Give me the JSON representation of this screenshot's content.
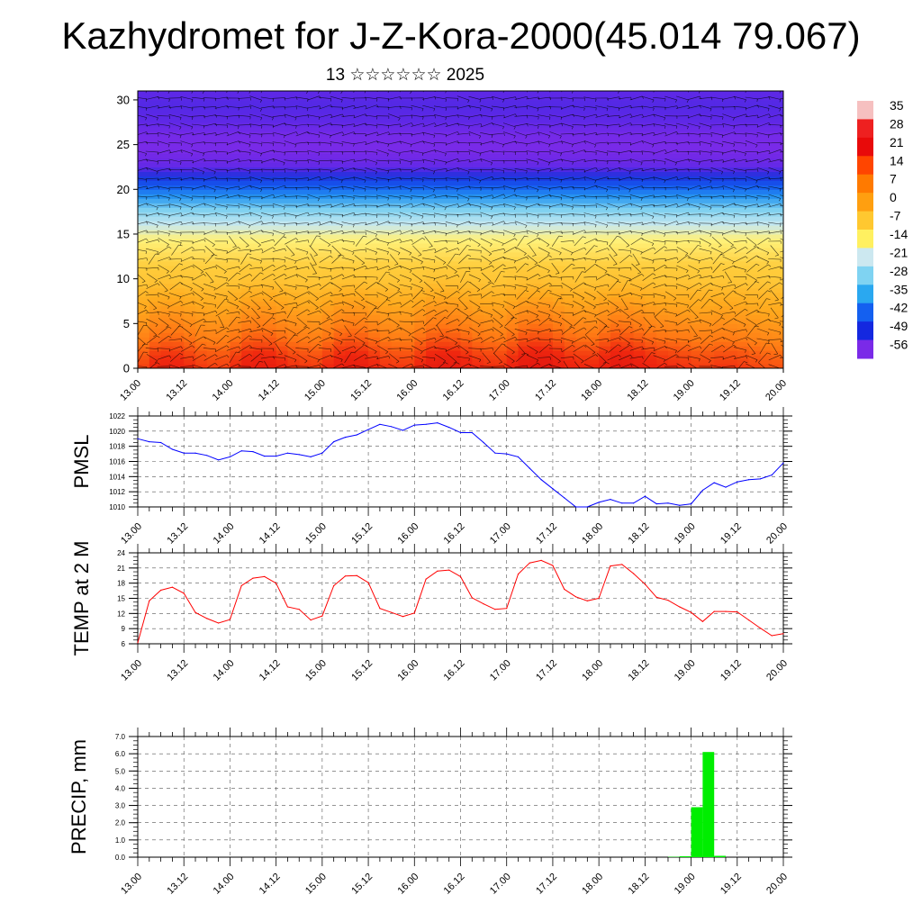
{
  "title": "Kazhydromet for J-Z-Kora-2000(45.014 79.067)",
  "subtitle": "13 ☆☆☆☆☆☆ 2025",
  "time_labels": [
    "13.00",
    "13.12",
    "14.00",
    "14.12",
    "15.00",
    "15.12",
    "16.00",
    "16.12",
    "17.00",
    "17.12",
    "18.00",
    "18.12",
    "19.00",
    "19.12",
    "20.00"
  ],
  "chart_data": [
    {
      "type": "heatmap",
      "title": "",
      "xlabel": "",
      "ylabel": "",
      "y_ticks": [
        0,
        5,
        10,
        15,
        20,
        25,
        30
      ],
      "ylim": [
        0,
        31
      ],
      "colorbar_labels": [
        "35",
        "28",
        "21",
        "14",
        "7",
        "0",
        "-7",
        "-14",
        "-21",
        "-28",
        "-35",
        "-42",
        "-49",
        "-56"
      ],
      "colorbar_colors": [
        "#f6c0c0",
        "#ee2020",
        "#e80a0a",
        "#ff4500",
        "#ff7a00",
        "#ff9f10",
        "#ffc830",
        "#fff060",
        "#cce8f0",
        "#7fd3f2",
        "#2aa8f0",
        "#1460f0",
        "#1428e0",
        "#7a2ae8"
      ],
      "levels": [
        0,
        1,
        2,
        3,
        4,
        5,
        6,
        7,
        8,
        9,
        10,
        11,
        12,
        13,
        14,
        15,
        16,
        17,
        18,
        19,
        20,
        21,
        22,
        23,
        24,
        25,
        26,
        27,
        28,
        29,
        30,
        31
      ],
      "temperature_profile": [
        22,
        19,
        15,
        12,
        9,
        6,
        2,
        0,
        -4,
        -8,
        -15,
        -22,
        -30,
        -40,
        -52,
        -56,
        -55,
        -50,
        -48,
        -50
      ]
    },
    {
      "type": "line",
      "ylabel": "PMSL",
      "ylim": [
        1010,
        1022
      ],
      "y_ticks": [
        1010,
        1012,
        1014,
        1016,
        1018,
        1020,
        1022
      ],
      "x": [
        "13.00",
        "13.03",
        "13.06",
        "13.09",
        "13.12",
        "13.15",
        "13.18",
        "13.21",
        "14.00",
        "14.03",
        "14.06",
        "14.09",
        "14.12",
        "14.15",
        "14.18",
        "14.21",
        "15.00",
        "15.03",
        "15.06",
        "15.09",
        "15.12",
        "15.15",
        "15.18",
        "15.21",
        "16.00",
        "16.03",
        "16.06",
        "16.09",
        "16.12",
        "16.15",
        "16.18",
        "16.21",
        "17.00",
        "17.03",
        "17.06",
        "17.09",
        "17.12",
        "17.15",
        "17.18",
        "17.21",
        "18.00",
        "18.03",
        "18.06",
        "18.09",
        "18.12",
        "18.15",
        "18.18",
        "18.21",
        "19.00",
        "19.03",
        "19.06",
        "19.09",
        "19.12",
        "19.15",
        "19.18",
        "19.21",
        "20.00"
      ],
      "series": [
        {
          "color": "#0000ff",
          "values": [
            1019.0,
            1018.6,
            1018.5,
            1017.6,
            1017.1,
            1017.1,
            1016.8,
            1016.2,
            1016.6,
            1017.4,
            1017.3,
            1016.7,
            1016.7,
            1017.1,
            1016.9,
            1016.6,
            1017.1,
            1018.6,
            1019.2,
            1019.5,
            1020.2,
            1020.9,
            1020.6,
            1020.1,
            1020.8,
            1020.9,
            1021.1,
            1020.5,
            1019.8,
            1019.8,
            1018.5,
            1017.1,
            1017.0,
            1016.6,
            1015.1,
            1013.6,
            1012.4,
            1011.2,
            1010.0,
            1010.0,
            1010.6,
            1011.0,
            1010.5,
            1010.5,
            1011.4,
            1010.4,
            1010.5,
            1010.2,
            1010.4,
            1012.2,
            1013.2,
            1012.6,
            1013.3,
            1013.6,
            1013.7,
            1014.2,
            1015.8
          ]
        }
      ]
    },
    {
      "type": "line",
      "ylabel": "TEMP at 2 M",
      "ylim": [
        6,
        24
      ],
      "y_ticks": [
        6,
        9,
        12,
        15,
        18,
        21,
        24
      ],
      "x": [
        "13.00",
        "13.03",
        "13.06",
        "13.09",
        "13.12",
        "13.15",
        "13.18",
        "13.21",
        "14.00",
        "14.03",
        "14.06",
        "14.09",
        "14.12",
        "14.15",
        "14.18",
        "14.21",
        "15.00",
        "15.03",
        "15.06",
        "15.09",
        "15.12",
        "15.15",
        "15.18",
        "15.21",
        "16.00",
        "16.03",
        "16.06",
        "16.09",
        "16.12",
        "16.15",
        "16.18",
        "16.21",
        "17.00",
        "17.03",
        "17.06",
        "17.09",
        "17.12",
        "17.15",
        "17.18",
        "17.21",
        "18.00",
        "18.03",
        "18.06",
        "18.09",
        "18.12",
        "18.15",
        "18.18",
        "18.21",
        "19.00",
        "19.03",
        "19.06",
        "19.09",
        "19.12",
        "19.15",
        "19.18",
        "19.21",
        "20.00"
      ],
      "series": [
        {
          "color": "#ff0000",
          "values": [
            6.2,
            14.5,
            16.6,
            17.2,
            16.0,
            12.2,
            11.0,
            10.1,
            10.8,
            17.5,
            19.0,
            19.3,
            18.0,
            13.3,
            12.8,
            10.7,
            11.5,
            17.5,
            19.4,
            19.5,
            18.1,
            13.0,
            12.2,
            11.4,
            12.1,
            18.8,
            20.4,
            20.6,
            19.3,
            15.1,
            13.9,
            12.8,
            13.0,
            19.8,
            22.0,
            22.5,
            21.5,
            16.8,
            15.3,
            14.5,
            15.0,
            21.4,
            21.7,
            19.9,
            17.8,
            15.2,
            14.6,
            13.3,
            12.2,
            10.4,
            12.4,
            12.4,
            12.3,
            10.7,
            9.1,
            7.6,
            8.0
          ]
        }
      ]
    },
    {
      "type": "bar",
      "ylabel": "PRECIP, mm",
      "ylim": [
        0,
        7
      ],
      "y_ticks": [
        "0.0",
        "1.0",
        "2.0",
        "3.0",
        "4.0",
        "5.0",
        "6.0",
        "7.0"
      ],
      "color": "#00ee00",
      "x": [
        "18.18",
        "18.21",
        "19.00",
        "19.03",
        "19.06"
      ],
      "values": [
        0.02,
        0.05,
        2.9,
        6.1,
        0.08
      ]
    }
  ]
}
